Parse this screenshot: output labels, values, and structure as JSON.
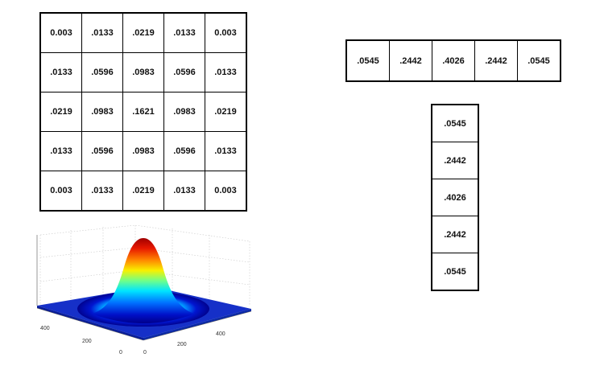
{
  "kernel_2d": {
    "rows": [
      [
        "0.003",
        ".0133",
        ".0219",
        ".0133",
        "0.003"
      ],
      [
        ".0133",
        ".0596",
        ".0983",
        ".0596",
        ".0133"
      ],
      [
        ".0219",
        ".0983",
        ".1621",
        ".0983",
        ".0219"
      ],
      [
        ".0133",
        ".0596",
        ".0983",
        ".0596",
        ".0133"
      ],
      [
        "0.003",
        ".0133",
        ".0219",
        ".0133",
        "0.003"
      ]
    ]
  },
  "kernel_1d_row": [
    ".0545",
    ".2442",
    ".4026",
    ".2442",
    ".0545"
  ],
  "kernel_1d_column": [
    ".0545",
    ".2442",
    ".4026",
    ".2442",
    ".0545"
  ],
  "surface_plot": {
    "type": "surface",
    "colormap": "jet",
    "grid": true,
    "x_ticks": [
      "0",
      "200",
      "400"
    ],
    "y_ticks": [
      "0",
      "200",
      "400"
    ]
  }
}
